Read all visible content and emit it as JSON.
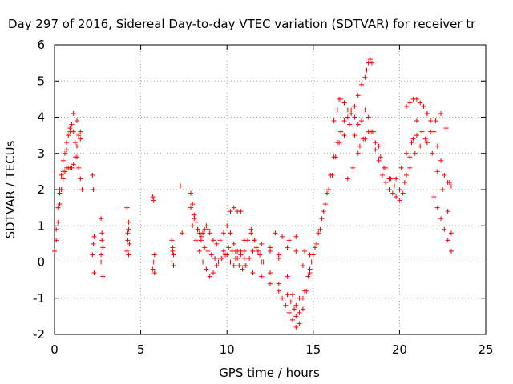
{
  "chart_data": {
    "type": "scatter",
    "title": "Day 297 of 2016, Sidereal Day-to-day VTEC variation (SDTVAR) for receiver tr",
    "xlabel": "GPS time / hours",
    "ylabel": "SDTVAR / TECUs",
    "xlim": [
      0,
      25
    ],
    "ylim": [
      -2,
      6
    ],
    "xticks": [
      "0",
      "5",
      "10",
      "15",
      "20",
      "25"
    ],
    "yticks": [
      "-2",
      "-1",
      "0",
      "1",
      "2",
      "3",
      "4",
      "5",
      "6"
    ],
    "grid": true,
    "marker": "plus",
    "color": "#ff0000",
    "series": [
      {
        "x": [
          0.0,
          0.1,
          0.2,
          0.3,
          0.4,
          0.5,
          0.6,
          0.7,
          0.8,
          0.9,
          1.0,
          1.1,
          1.2,
          1.3,
          1.4,
          1.5,
          1.6,
          0.1,
          0.2,
          0.3,
          0.4,
          0.5,
          0.6,
          0.7,
          0.8,
          0.9,
          1.0,
          1.1,
          1.2,
          1.3,
          1.4,
          1.5,
          0.3,
          0.5,
          0.7,
          0.9,
          1.1,
          1.3,
          1.5,
          2.2,
          2.25,
          2.3,
          2.2,
          2.3,
          2.25,
          2.7,
          2.75,
          2.8,
          2.7,
          2.8,
          2.75,
          2.7,
          4.2,
          4.3,
          4.25,
          4.35,
          4.2,
          4.3,
          4.25,
          4.3,
          5.7,
          5.75,
          5.8,
          5.7,
          5.75,
          5.8,
          6.8,
          6.85,
          6.9,
          6.8,
          6.9,
          6.85,
          7.3,
          7.4,
          7.9,
          8.0,
          8.1,
          8.2,
          8.3,
          8.4,
          8.5,
          8.6,
          8.7,
          8.8,
          8.9,
          9.0,
          9.2,
          9.4,
          9.6,
          9.8,
          10.0,
          10.2,
          10.4,
          10.6,
          10.8,
          11.0,
          11.2,
          11.4,
          11.6,
          7.9,
          8.1,
          8.3,
          8.5,
          8.7,
          8.9,
          9.1,
          9.3,
          9.5,
          9.7,
          9.9,
          10.1,
          10.3,
          10.5,
          10.7,
          10.9,
          11.1,
          11.3,
          11.5,
          11.7,
          11.9,
          12.1,
          8.0,
          8.2,
          8.4,
          8.6,
          8.8,
          9.0,
          9.2,
          9.4,
          9.6,
          9.8,
          10.0,
          10.2,
          10.4,
          10.6,
          10.8,
          11.0,
          10.2,
          10.4,
          10.6,
          10.8,
          11.4,
          11.6,
          11.8,
          10.5,
          11.0,
          11.5,
          12.0,
          12.5,
          13.0,
          13.2,
          13.4,
          13.6,
          13.8,
          14.0,
          14.2,
          14.4,
          14.6,
          14.8,
          11.0,
          11.5,
          12.0,
          12.5,
          13.0,
          13.5,
          13.7,
          13.9,
          14.0,
          14.2,
          14.4,
          12.0,
          12.5,
          13.0,
          13.5,
          13.8,
          14.0,
          14.2,
          12.5,
          13.0,
          13.5,
          14.0,
          14.5,
          14.8,
          15.0,
          12.8,
          13.2,
          13.6,
          14.0,
          14.4,
          14.8,
          14.5,
          14.7,
          14.9,
          15.1,
          15.3,
          15.5,
          15.7,
          15.9,
          16.1,
          16.3,
          16.5,
          15.2,
          15.4,
          15.6,
          15.8,
          16.0,
          16.2,
          16.4,
          16.6,
          16.8,
          16.2,
          16.4,
          16.6,
          16.8,
          17.0,
          17.2,
          17.4,
          17.6,
          17.8,
          18.0,
          18.2,
          18.4,
          18.6,
          18.8,
          19.0,
          19.2,
          19.4,
          19.6,
          19.8,
          20.0,
          20.2,
          20.4,
          20.6,
          20.8,
          21.0,
          16.5,
          16.8,
          17.0,
          17.2,
          17.4,
          17.6,
          17.8,
          18.0,
          18.1,
          18.2,
          18.3,
          18.4,
          17.0,
          17.3,
          17.6,
          17.9,
          18.2,
          18.5,
          18.8,
          19.1,
          19.4,
          19.7,
          20.0,
          20.3,
          20.6,
          20.9,
          21.2,
          21.5,
          21.8,
          22.1,
          22.4,
          22.7,
          22.9,
          16.8,
          17.1,
          17.4,
          17.7,
          18.0,
          18.3,
          18.6,
          18.9,
          19.2,
          19.5,
          19.8,
          20.1,
          20.4,
          20.7,
          21.0,
          21.3,
          21.6,
          21.9,
          22.2,
          22.5,
          22.8,
          23.0,
          20.4,
          20.6,
          20.8,
          21.0,
          21.2,
          21.4,
          21.6,
          21.6,
          21.8,
          22.0,
          22.2,
          22.4,
          22.6,
          22.8,
          23.0,
          22.0,
          22.2,
          22.4,
          22.6,
          22.8,
          23.0
        ],
        "y": [
          0.3,
          0.9,
          1.5,
          2.0,
          2.4,
          2.8,
          3.0,
          3.3,
          3.5,
          3.7,
          3.8,
          3.6,
          3.3,
          2.9,
          2.6,
          2.3,
          2.0,
          0.6,
          1.1,
          1.6,
          2.0,
          2.3,
          2.5,
          2.6,
          2.6,
          2.6,
          2.6,
          2.7,
          2.9,
          3.2,
          3.5,
          3.4,
          1.9,
          2.5,
          3.1,
          3.6,
          4.1,
          3.9,
          3.6,
          2.4,
          2.0,
          0.7,
          0.2,
          -0.3,
          0.5,
          1.2,
          0.8,
          0.4,
          0.0,
          -0.4,
          0.6,
          0.2,
          1.5,
          1.1,
          0.8,
          0.5,
          0.3,
          0.9,
          0.6,
          0.2,
          1.8,
          1.7,
          0.2,
          -0.2,
          0.0,
          -0.3,
          0.6,
          0.4,
          0.2,
          0.0,
          -0.1,
          0.3,
          2.1,
          0.8,
          1.9,
          1.6,
          1.3,
          1.1,
          0.9,
          0.8,
          0.7,
          0.8,
          0.9,
          1.0,
          0.9,
          0.8,
          0.6,
          0.5,
          0.6,
          0.8,
          1.0,
          0.8,
          0.5,
          0.3,
          0.2,
          0.3,
          0.6,
          0.9,
          0.6,
          1.5,
          1.2,
          0.9,
          0.6,
          0.4,
          0.3,
          0.2,
          0.1,
          0.0,
          0.1,
          0.2,
          0.4,
          0.3,
          0.1,
          -0.1,
          -0.2,
          -0.1,
          0.1,
          0.3,
          0.4,
          0.2,
          0.0,
          1.0,
          0.6,
          0.3,
          0.0,
          -0.2,
          -0.4,
          -0.3,
          -0.1,
          0.1,
          0.3,
          0.2,
          0.0,
          -0.1,
          0.1,
          0.3,
          0.1,
          1.4,
          1.5,
          1.4,
          1.4,
          0.8,
          0.6,
          0.3,
          0.3,
          -0.1,
          -0.3,
          -0.4,
          -0.6,
          -0.8,
          -1.0,
          -1.2,
          -1.4,
          -1.6,
          -1.8,
          -1.7,
          -1.3,
          -0.8,
          -0.3,
          0.6,
          0.3,
          0.0,
          -0.3,
          -0.6,
          -0.9,
          -1.1,
          -1.3,
          -1.5,
          -1.4,
          -1.0,
          0.5,
          0.3,
          0.1,
          -0.4,
          -0.9,
          -1.2,
          -1.0,
          0.4,
          0.2,
          0.4,
          0.7,
          0.3,
          -0.2,
          0.2,
          0.8,
          0.7,
          0.6,
          0.3,
          -0.1,
          0.2,
          -0.8,
          -0.4,
          0.0,
          0.4,
          0.8,
          1.2,
          1.6,
          2.0,
          2.4,
          2.9,
          3.3,
          0.5,
          0.9,
          1.4,
          1.9,
          2.4,
          2.9,
          3.3,
          3.6,
          3.9,
          3.9,
          4.2,
          4.5,
          4.4,
          4.0,
          4.2,
          4.0,
          3.8,
          3.9,
          4.2,
          4.0,
          3.6,
          3.1,
          2.8,
          2.4,
          2.2,
          2.0,
          1.9,
          1.8,
          1.7,
          1.9,
          2.4,
          2.9,
          3.4,
          3.9,
          4.5,
          4.4,
          4.2,
          4.1,
          4.3,
          4.6,
          4.9,
          5.1,
          5.3,
          5.5,
          5.6,
          5.5,
          2.3,
          2.6,
          3.0,
          3.4,
          3.6,
          3.6,
          3.2,
          2.6,
          2.3,
          2.1,
          2.0,
          2.2,
          2.6,
          3.0,
          3.2,
          3.4,
          3.6,
          3.9,
          4.1,
          3.7,
          2.2,
          3.5,
          3.8,
          3.5,
          3.2,
          3.4,
          3.6,
          3.3,
          2.9,
          2.6,
          2.3,
          2.3,
          2.6,
          3.0,
          3.3,
          3.5,
          3.6,
          3.3,
          3.0,
          2.5,
          2.0,
          1.4,
          0.8,
          4.3,
          4.4,
          4.5,
          4.5,
          4.4,
          4.3,
          4.1,
          4.1,
          3.9,
          3.6,
          3.2,
          2.8,
          2.4,
          2.2,
          2.1,
          1.8,
          1.5,
          1.2,
          0.9,
          0.6,
          0.3
        ]
      }
    ]
  }
}
